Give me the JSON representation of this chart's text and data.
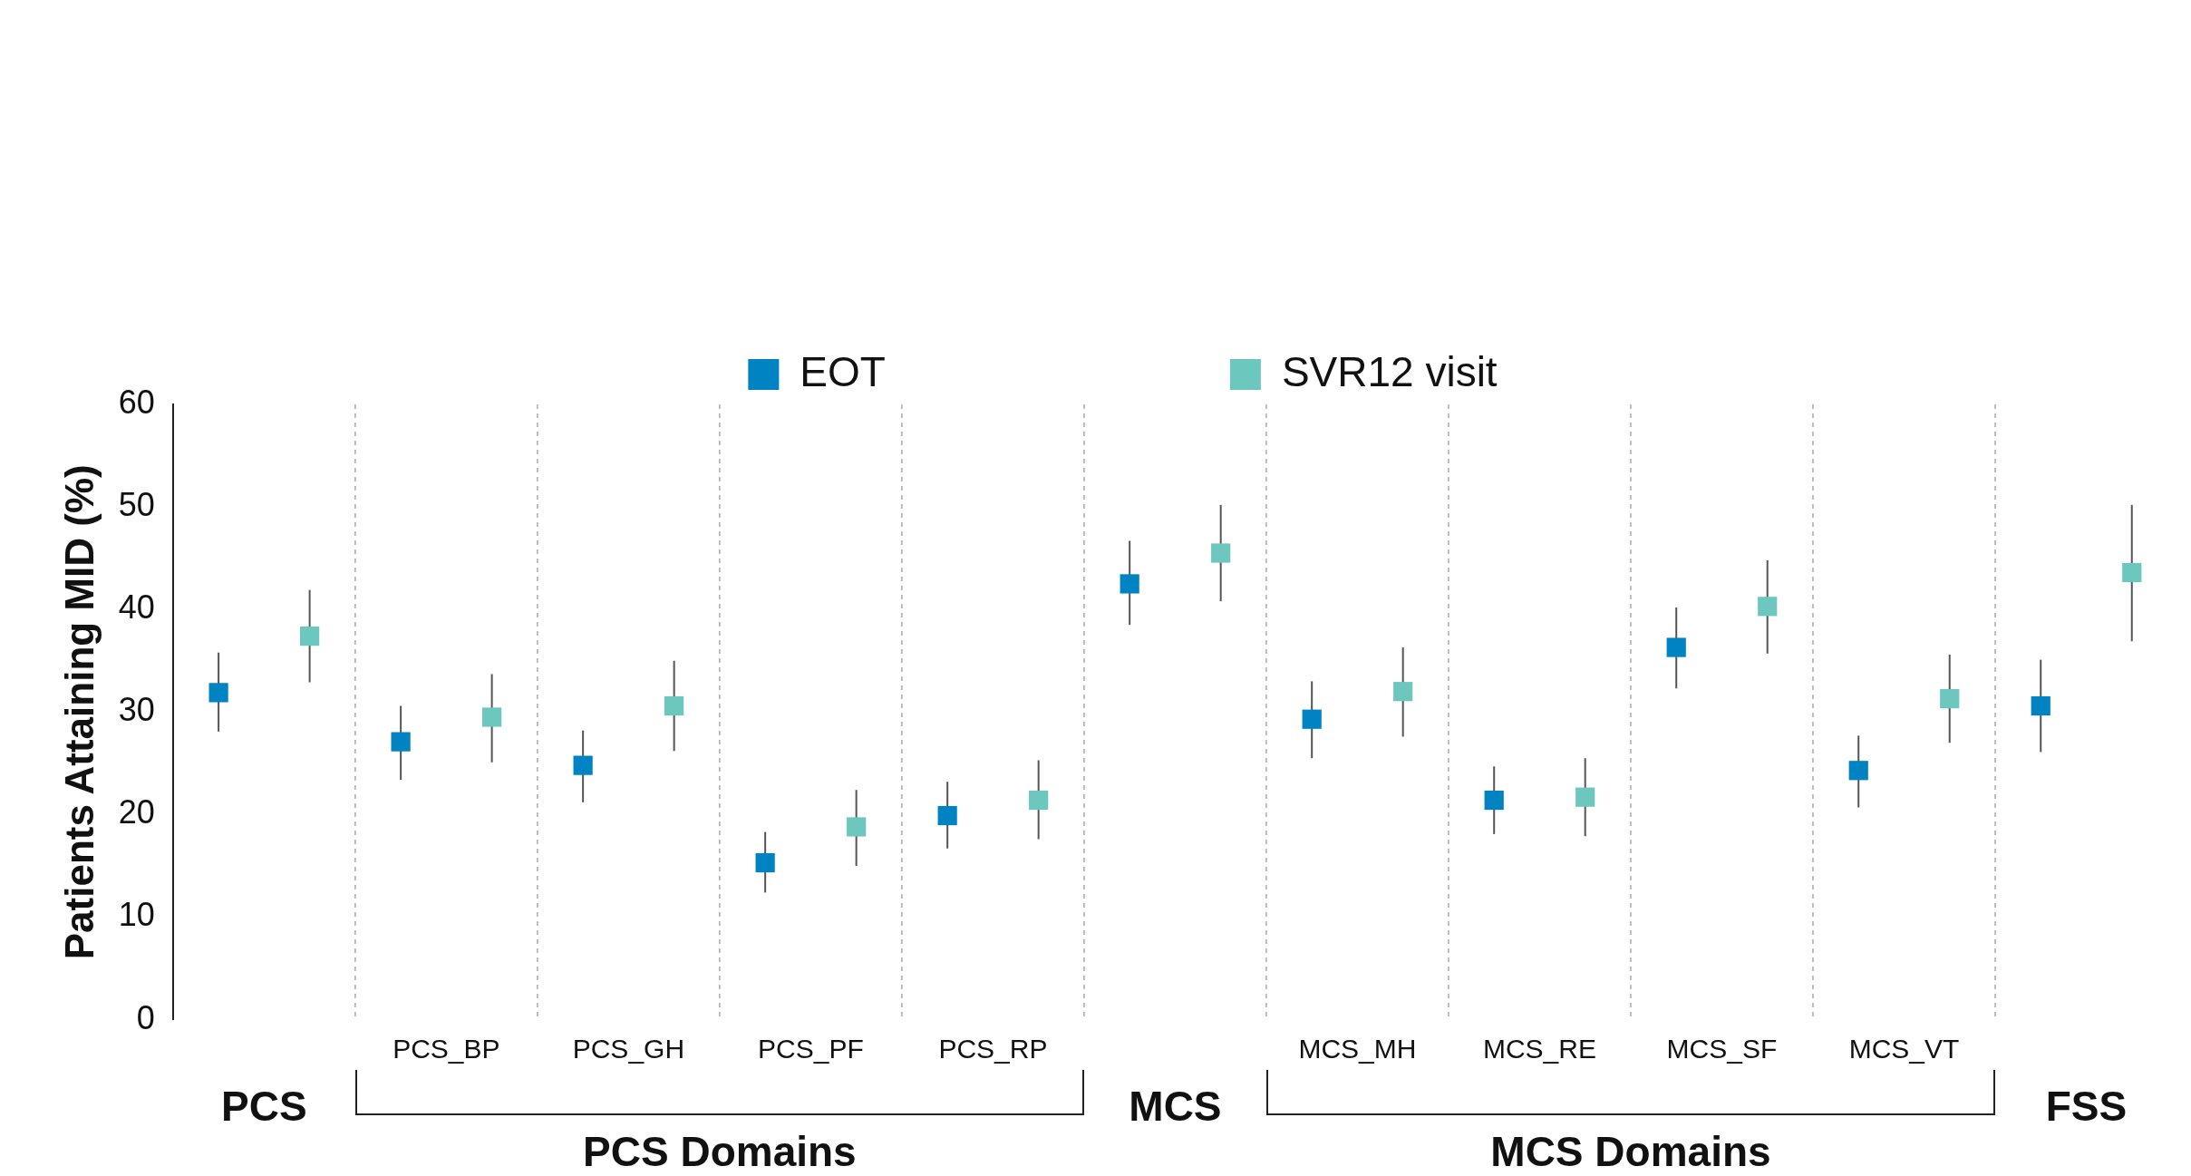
{
  "chart_data": {
    "type": "scatter",
    "ylabel": "Patients Attaining MID (%)",
    "categories": [
      "PCS",
      "PCS_BP",
      "PCS_GH",
      "PCS_PF",
      "PCS_RP",
      "MCS",
      "MCS_MH",
      "MCS_RE",
      "MCS_SF",
      "MCS_VT",
      "FSS"
    ],
    "series": [
      {
        "name": "EOT",
        "color": "#0083c3",
        "values": [
          31.9,
          27.1,
          24.8,
          15.3,
          19.9,
          42.5,
          29.3,
          21.4,
          36.3,
          24.3,
          30.6
        ],
        "errors": [
          [
            28.1,
            35.8
          ],
          [
            23.4,
            30.6
          ],
          [
            21.2,
            28.2
          ],
          [
            12.4,
            18.3
          ],
          [
            16.7,
            23.2
          ],
          [
            38.5,
            46.7
          ],
          [
            25.5,
            33.0
          ],
          [
            18.1,
            24.7
          ],
          [
            32.3,
            40.2
          ],
          [
            20.7,
            27.7
          ],
          [
            26.1,
            35.1
          ]
        ]
      },
      {
        "name": "SVR12 visit",
        "color": "#6cc8bf",
        "values": [
          37.4,
          29.5,
          30.6,
          18.8,
          21.4,
          45.5,
          32.0,
          21.7,
          40.3,
          31.3,
          43.6
        ],
        "errors": [
          [
            32.9,
            41.9
          ],
          [
            25.1,
            33.7
          ],
          [
            26.2,
            35.0
          ],
          [
            15.0,
            22.4
          ],
          [
            17.6,
            25.3
          ],
          [
            40.8,
            50.2
          ],
          [
            27.6,
            36.3
          ],
          [
            17.9,
            25.5
          ],
          [
            35.7,
            44.8
          ],
          [
            27.0,
            35.6
          ],
          [
            36.9,
            50.2
          ]
        ]
      }
    ],
    "ylim": [
      0,
      60
    ],
    "yticks": [
      0,
      10,
      20,
      30,
      40,
      50,
      60
    ],
    "grid": "x",
    "legend": "top",
    "marker": "square",
    "annotations": [
      "PCS Domains",
      "MCS Domains"
    ]
  }
}
